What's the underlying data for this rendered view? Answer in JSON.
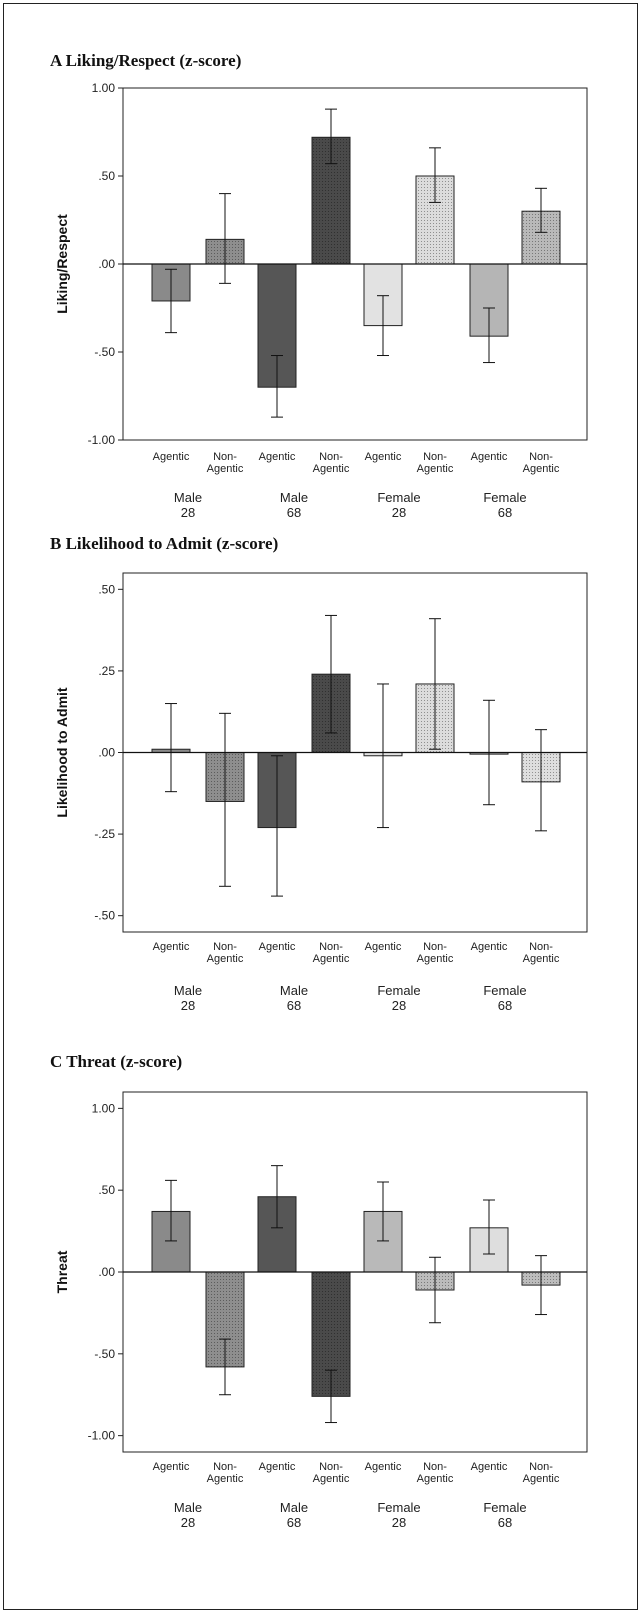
{
  "panels": [
    {
      "title": "A Liking/Respect (z-score)"
    },
    {
      "title": "B Likelihood to Admit (z-score)"
    },
    {
      "title": "C Threat (z-score)"
    }
  ],
  "chart_data": [
    {
      "type": "bar",
      "title": "A Liking/Respect (z-score)",
      "ylabel": "Liking/Respect",
      "xlabel": "",
      "ylim": [
        -1.0,
        1.0
      ],
      "yticks": [
        1.0,
        0.5,
        0.0,
        -0.5,
        -1.0
      ],
      "ytick_labels": [
        "1.00",
        ".50",
        ".00",
        "-.50",
        "-1.00"
      ],
      "categories": [
        "Agentic",
        "Non-\nAgentic",
        "Agentic",
        "Non-\nAgentic",
        "Agentic",
        "Non-\nAgentic",
        "Agentic",
        "Non-\nAgentic"
      ],
      "groups": [
        {
          "label": "Male\n28",
          "span": [
            0,
            1
          ]
        },
        {
          "label": "Male\n68",
          "span": [
            2,
            3
          ]
        },
        {
          "label": "Female\n28",
          "span": [
            4,
            5
          ]
        },
        {
          "label": "Female\n68",
          "span": [
            6,
            7
          ]
        }
      ],
      "values": [
        -0.21,
        0.14,
        -0.7,
        0.72,
        -0.35,
        0.5,
        -0.41,
        0.3
      ],
      "err_low": [
        -0.39,
        -0.11,
        -0.87,
        0.57,
        -0.52,
        0.35,
        -0.56,
        0.18
      ],
      "err_high": [
        -0.03,
        0.4,
        -0.52,
        0.88,
        -0.18,
        0.66,
        -0.25,
        0.43
      ],
      "colors": [
        "#8a8a8a",
        "#8e8e8e",
        "#565656",
        "#4a4a4a",
        "#e2e2e2",
        "#dcdcdc",
        "#b5b5b5",
        "#b9b9b9"
      ],
      "patterned": [
        false,
        true,
        false,
        true,
        false,
        true,
        false,
        true
      ],
      "grid": false,
      "legend": "none"
    },
    {
      "type": "bar",
      "title": "B Likelihood to Admit (z-score)",
      "ylabel": "Likelihood to Admit",
      "xlabel": "",
      "ylim": [
        -0.55,
        0.55
      ],
      "yticks": [
        0.5,
        0.25,
        0.0,
        -0.25,
        -0.5
      ],
      "ytick_labels": [
        ".50",
        ".25",
        ".00",
        "-.25",
        "-.50"
      ],
      "categories": [
        "Agentic",
        "Non-\nAgentic",
        "Agentic",
        "Non-\nAgentic",
        "Agentic",
        "Non-\nAgentic",
        "Agentic",
        "Non-\nAgentic"
      ],
      "groups": [
        {
          "label": "Male\n28",
          "span": [
            0,
            1
          ]
        },
        {
          "label": "Male\n68",
          "span": [
            2,
            3
          ]
        },
        {
          "label": "Female\n28",
          "span": [
            4,
            5
          ]
        },
        {
          "label": "Female\n68",
          "span": [
            6,
            7
          ]
        }
      ],
      "values": [
        0.01,
        -0.15,
        -0.23,
        0.24,
        -0.01,
        0.21,
        -0.005,
        -0.09
      ],
      "err_low": [
        -0.12,
        -0.41,
        -0.44,
        0.06,
        -0.23,
        0.01,
        -0.16,
        -0.24
      ],
      "err_high": [
        0.15,
        0.12,
        -0.01,
        0.42,
        0.21,
        0.41,
        0.16,
        0.07
      ],
      "colors": [
        "#8a8a8a",
        "#8e8e8e",
        "#565656",
        "#4a4a4a",
        "#e2e2e2",
        "#dcdcdc",
        "#b5b5b5",
        "#dedede"
      ],
      "patterned": [
        false,
        true,
        false,
        true,
        false,
        true,
        false,
        true
      ],
      "grid": false,
      "legend": "none"
    },
    {
      "type": "bar",
      "title": "C Threat (z-score)",
      "ylabel": "Threat",
      "xlabel": "",
      "ylim": [
        -1.1,
        1.1
      ],
      "yticks": [
        1.0,
        0.5,
        0.0,
        -0.5,
        -1.0
      ],
      "ytick_labels": [
        "1.00",
        ".50",
        ".00",
        "-.50",
        "-1.00"
      ],
      "categories": [
        "Agentic",
        "Non-\nAgentic",
        "Agentic",
        "Non-\nAgentic",
        "Agentic",
        "Non-\nAgentic",
        "Agentic",
        "Non-\nAgentic"
      ],
      "groups": [
        {
          "label": "Male\n28",
          "span": [
            0,
            1
          ]
        },
        {
          "label": "Male\n68",
          "span": [
            2,
            3
          ]
        },
        {
          "label": "Female\n28",
          "span": [
            4,
            5
          ]
        },
        {
          "label": "Female\n68",
          "span": [
            6,
            7
          ]
        }
      ],
      "values": [
        0.37,
        -0.58,
        0.46,
        -0.76,
        0.37,
        -0.11,
        0.27,
        -0.08
      ],
      "err_low": [
        0.19,
        -0.75,
        0.27,
        -0.92,
        0.19,
        -0.31,
        0.11,
        -0.26
      ],
      "err_high": [
        0.56,
        -0.41,
        0.65,
        -0.6,
        0.55,
        0.09,
        0.44,
        0.1
      ],
      "colors": [
        "#8a8a8a",
        "#8e8e8e",
        "#565656",
        "#4a4a4a",
        "#b9b9b9",
        "#bcbcbc",
        "#dedede",
        "#bdbdbd"
      ],
      "patterned": [
        false,
        true,
        false,
        true,
        false,
        true,
        false,
        true
      ],
      "grid": false,
      "legend": "none"
    }
  ]
}
